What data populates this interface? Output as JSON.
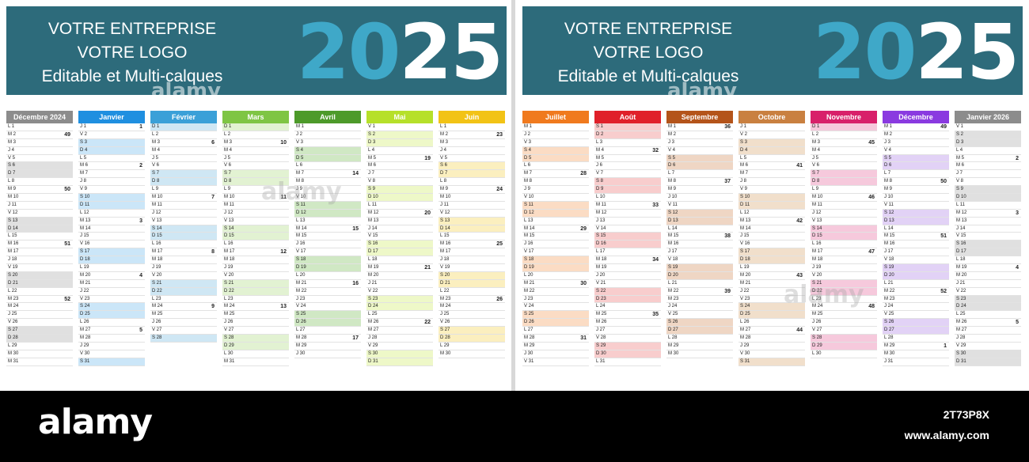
{
  "banner": {
    "line1": "VOTRE ENTREPRISE",
    "line2": "VOTRE LOGO",
    "line3": "Editable et Multi-calques",
    "year_part1": "20",
    "year_part2": "25"
  },
  "watermark": "alamy",
  "footer": {
    "logo": "alamy",
    "image_id": "2T73P8X",
    "url": "www.alamy.com"
  },
  "day_letters": [
    "L",
    "M",
    "M",
    "J",
    "V",
    "S",
    "D"
  ],
  "left_months": [
    {
      "name": "Décembre 2024",
      "color": "#8c8c8c",
      "light": "#e0e0e0",
      "days": 31,
      "start": 0,
      "weeks": {
        "1": "",
        "2": "49",
        "9": "50",
        "16": "51",
        "23": "52"
      }
    },
    {
      "name": "Janvier",
      "color": "#1f8fe0",
      "light": "#cbe6f8",
      "days": 31,
      "start": 3,
      "weeks": {
        "1": "1",
        "6": "2",
        "13": "3",
        "20": "4",
        "27": "5"
      }
    },
    {
      "name": "Février",
      "color": "#3aa0d8",
      "light": "#cfe7f4",
      "days": 28,
      "start": 6,
      "weeks": {
        "3": "6",
        "10": "7",
        "17": "8",
        "24": "9"
      }
    },
    {
      "name": "Mars",
      "color": "#7fc544",
      "light": "#e2f2d2",
      "days": 31,
      "start": 6,
      "weeks": {
        "3": "10",
        "10": "11",
        "17": "12",
        "24": "13",
        "31": ""
      }
    },
    {
      "name": "Avril",
      "color": "#4d9a2a",
      "light": "#d0e8c4",
      "days": 30,
      "start": 2,
      "weeks": {
        "7": "14",
        "14": "15",
        "21": "16",
        "28": "17"
      }
    },
    {
      "name": "Mai",
      "color": "#b6e02a",
      "light": "#eef8c8",
      "days": 31,
      "start": 4,
      "weeks": {
        "5": "19",
        "12": "20",
        "19": "21",
        "26": "22"
      }
    },
    {
      "name": "Juin",
      "color": "#f2c316",
      "light": "#fbefbf",
      "days": 30,
      "start": 0,
      "weeks": {
        "2": "23",
        "9": "24",
        "16": "25",
        "23": "26"
      }
    }
  ],
  "right_months": [
    {
      "name": "Juillet",
      "color": "#f07a1e",
      "light": "#fbdcc4",
      "days": 31,
      "start": 2,
      "weeks": {
        "7": "28",
        "14": "29",
        "21": "30",
        "28": "31"
      }
    },
    {
      "name": "Août",
      "color": "#e0202a",
      "light": "#f8cdcd",
      "days": 31,
      "start": 5,
      "weeks": {
        "4": "32",
        "11": "33",
        "18": "34",
        "25": "35"
      }
    },
    {
      "name": "Septembre",
      "color": "#b4541a",
      "light": "#efd6c4",
      "days": 30,
      "start": 1,
      "weeks": {
        "1": "36",
        "8": "37",
        "15": "38",
        "22": "39",
        "29": ""
      }
    },
    {
      "name": "Octobre",
      "color": "#c98040",
      "light": "#f1dfcb",
      "days": 31,
      "start": 3,
      "weeks": {
        "6": "41",
        "13": "42",
        "20": "43",
        "27": "44"
      }
    },
    {
      "name": "Novembre",
      "color": "#d8206a",
      "light": "#f6c9dc",
      "days": 30,
      "start": 6,
      "weeks": {
        "3": "45",
        "10": "46",
        "17": "47",
        "24": "48"
      }
    },
    {
      "name": "Décembre",
      "color": "#8a3ae0",
      "light": "#e2d2f6",
      "days": 31,
      "start": 1,
      "weeks": {
        "1": "49",
        "8": "50",
        "15": "51",
        "22": "52",
        "29": "1"
      }
    },
    {
      "name": "Janvier 2026",
      "color": "#8c8c8c",
      "light": "#e0e0e0",
      "days": 31,
      "start": 4,
      "weeks": {
        "5": "2",
        "12": "3",
        "19": "4",
        "26": "5"
      }
    }
  ]
}
